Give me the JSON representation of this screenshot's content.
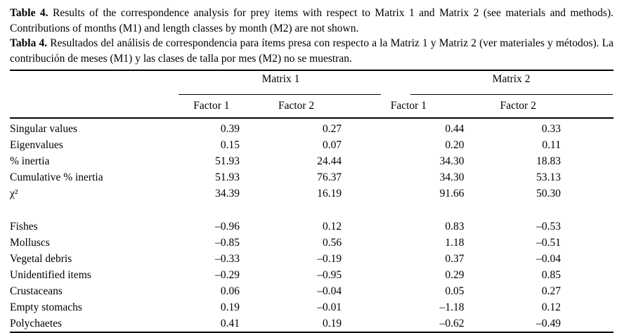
{
  "caption": {
    "en": {
      "label": "Table 4.",
      "text": "Results of the correspondence analysis for prey items with respect to Matrix 1 and Matrix 2 (see materials and methods). Contributions of months (M1) and length classes by month (M2) are not shown."
    },
    "es": {
      "label": "Tabla 4.",
      "text": "Resultados del análisis de correspondencia para ítems presa con respecto a la Matriz 1 y Matriz 2 (ver materiales y métodos). La contribución de meses (M1) y las clases de talla por mes (M2) no se muestran."
    }
  },
  "table": {
    "spanners": {
      "matrix1": "Matrix 1",
      "matrix2": "Matrix 2"
    },
    "factors": [
      "Factor 1",
      "Factor 2",
      "Factor 1",
      "Factor 2"
    ],
    "stat_rows": [
      {
        "label": "Singular values",
        "values": [
          "0.39",
          "0.27",
          "0.44",
          "0.33"
        ]
      },
      {
        "label": "Eigenvalues",
        "values": [
          "0.15",
          "0.07",
          "0.20",
          "0.11"
        ]
      },
      {
        "label": "% inertia",
        "values": [
          "51.93",
          "24.44",
          "34.30",
          "18.83"
        ]
      },
      {
        "label": "Cumulative % inertia",
        "values": [
          "51.93",
          "76.37",
          "34.30",
          "53.13"
        ]
      },
      {
        "label": "χ²",
        "values": [
          "34.39",
          "16.19",
          "91.66",
          "50.30"
        ]
      }
    ],
    "item_rows": [
      {
        "label": "Fishes",
        "values": [
          "–0.96",
          "0.12",
          "0.83",
          "–0.53"
        ]
      },
      {
        "label": "Molluscs",
        "values": [
          "–0.85",
          "0.56",
          "1.18",
          "–0.51"
        ]
      },
      {
        "label": "Vegetal debris",
        "values": [
          "–0.33",
          "–0.19",
          "0.37",
          "–0.04"
        ]
      },
      {
        "label": "Unidentified items",
        "values": [
          "–0.29",
          "–0.95",
          "0.29",
          "0.85"
        ]
      },
      {
        "label": "Crustaceans",
        "values": [
          "0.06",
          "–0.04",
          "0.05",
          "0.27"
        ]
      },
      {
        "label": "Empty stomachs",
        "values": [
          "0.19",
          "–0.01",
          "–1.18",
          "0.12"
        ]
      },
      {
        "label": "Polychaetes",
        "values": [
          "0.41",
          "0.19",
          "–0.62",
          "–0.49"
        ]
      }
    ]
  },
  "colors": {
    "text": "#000000",
    "background": "#ffffff",
    "rule": "#000000"
  }
}
